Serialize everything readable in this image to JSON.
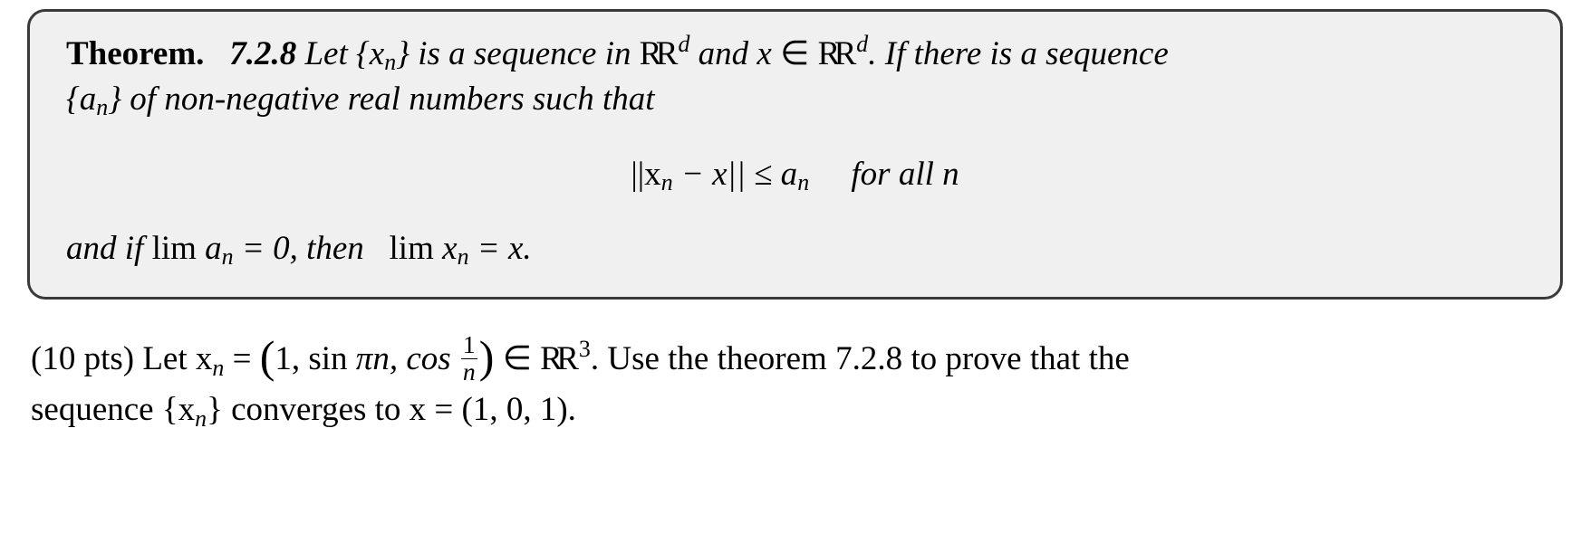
{
  "theorem": {
    "label": "Theorem.",
    "number": "7.2.8",
    "line1_a": "Let",
    "line1_seq": "{x",
    "line1_seq_sub": "n",
    "line1_seq_close": "}",
    "line1_b": "is a sequence in",
    "space_R": "R",
    "sup_d": "d",
    "line1_c": "and x",
    "elem": "∈",
    "line1_d": ". If there is a sequence",
    "line2_a": "{a",
    "line2_a_sub": "n",
    "line2_a_close": "}",
    "line2_b": "of non-negative real numbers such that",
    "disp_a": "||x",
    "disp_a_sub": "n",
    "disp_b": " − x|| ≤ a",
    "disp_b_sub": "n",
    "disp_for": "for  all  n",
    "line3_a": "and if",
    "line3_lim1": "lim a",
    "line3_lim1_sub": "n",
    "line3_eq0": " = 0,",
    "line3_then": "then",
    "line3_lim2": "lim x",
    "line3_lim2_sub": "n",
    "line3_eqx": " = x."
  },
  "question": {
    "pts": "(10 pts)",
    "let": "Let x",
    "let_sub": "n",
    "eq_open": " = ",
    "c1": "1, sin",
    "pi": "π",
    "n1": "n, cos",
    "frac_num": "1",
    "frac_den": "n",
    "in": " ∈ ",
    "R": "R",
    "sup3": "3",
    "tail1": ". Use the theorem 7.2.8 to prove that the",
    "line2_a": "sequence {x",
    "line2_sub": "n",
    "line2_b": "} converges to x = (1, 0, 1)."
  }
}
